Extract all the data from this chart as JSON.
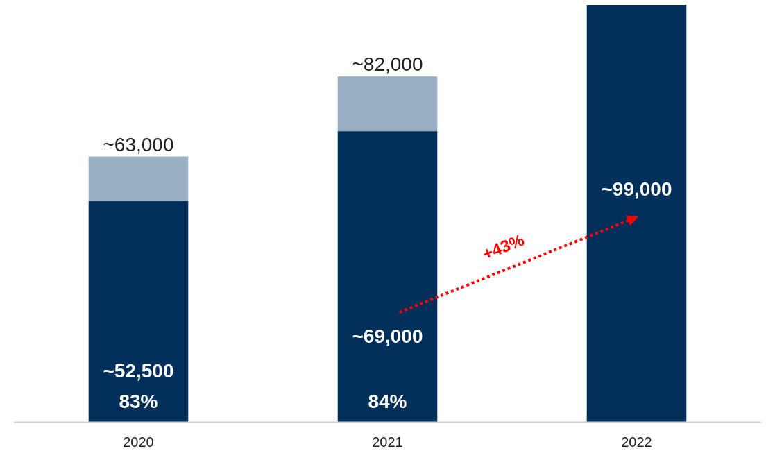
{
  "chart_data": {
    "type": "bar",
    "stacked": true,
    "categories": [
      "2020",
      "2021",
      "2022"
    ],
    "series": [
      {
        "color": "#03305a",
        "values": [
          52500,
          69000,
          99000
        ],
        "value_labels": [
          "~52,500",
          "~69,000",
          "~99,000"
        ]
      },
      {
        "color": "#97aec3",
        "values": [
          10500,
          13000,
          null
        ]
      }
    ],
    "totals": [
      "~63,000",
      "~82,000",
      null
    ],
    "annotations": [
      "+43%",
      "83%",
      "84%"
    ]
  }
}
